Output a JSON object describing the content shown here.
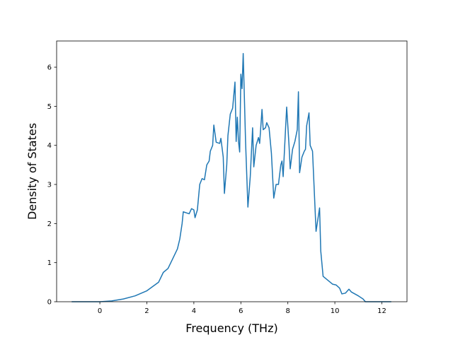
{
  "chart_data": {
    "type": "line",
    "x_label": "Frequency (THz)",
    "y_label": "Density of States",
    "xlim": [
      -1.84,
      13.07
    ],
    "ylim": [
      0,
      6.67
    ],
    "xticks": [
      0,
      2,
      4,
      6,
      8,
      10,
      12
    ],
    "yticks": [
      0,
      1,
      2,
      3,
      4,
      5,
      6
    ],
    "series": [
      {
        "color": "#1f77b4",
        "x": [
          -1.2,
          -0.6,
          0,
          0.5,
          1,
          1.5,
          2,
          2.5,
          2.7,
          2.9,
          3.1,
          3.3,
          3.4,
          3.5,
          3.55,
          3.7,
          3.8,
          3.9,
          4.0,
          4.05,
          4.15,
          4.25,
          4.35,
          4.45,
          4.55,
          4.65,
          4.7,
          4.8,
          4.85,
          4.95,
          5.1,
          5.15,
          5.25,
          5.3,
          5.4,
          5.45,
          5.55,
          5.65,
          5.75,
          5.8,
          5.85,
          5.9,
          5.95,
          6.0,
          6.05,
          6.1,
          6.2,
          6.3,
          6.4,
          6.5,
          6.55,
          6.65,
          6.75,
          6.8,
          6.9,
          6.95,
          7.05,
          7.1,
          7.2,
          7.3,
          7.4,
          7.5,
          7.6,
          7.7,
          7.75,
          7.8,
          7.9,
          7.95,
          8.05,
          8.1,
          8.2,
          8.3,
          8.4,
          8.45,
          8.5,
          8.6,
          8.7,
          8.75,
          8.8,
          8.9,
          8.95,
          9.05,
          9.2,
          9.35,
          9.4,
          9.5,
          9.7,
          9.9,
          10.05,
          10.2,
          10.3,
          10.45,
          10.6,
          10.7,
          11.0,
          11.2,
          11.3,
          12.4
        ],
        "values": [
          0,
          0,
          0,
          0.02,
          0.07,
          0.15,
          0.28,
          0.5,
          0.75,
          0.85,
          1.1,
          1.35,
          1.6,
          2.0,
          2.3,
          2.27,
          2.25,
          2.38,
          2.35,
          2.15,
          2.35,
          3.0,
          3.15,
          3.12,
          3.5,
          3.6,
          3.85,
          4.0,
          4.52,
          4.08,
          4.05,
          4.18,
          3.7,
          2.77,
          3.5,
          4.25,
          4.8,
          4.95,
          5.62,
          4.1,
          4.72,
          4.1,
          3.83,
          5.82,
          5.45,
          6.35,
          4.1,
          2.42,
          3.2,
          4.45,
          3.45,
          4.0,
          4.2,
          4.05,
          4.92,
          4.4,
          4.45,
          4.58,
          4.45,
          3.8,
          2.65,
          3.0,
          3.0,
          3.5,
          3.6,
          3.2,
          4.4,
          4.98,
          4.0,
          3.4,
          3.9,
          4.1,
          4.4,
          5.37,
          3.3,
          3.7,
          3.85,
          3.9,
          4.5,
          4.83,
          4.0,
          3.85,
          1.8,
          2.4,
          1.3,
          0.65,
          0.55,
          0.45,
          0.43,
          0.35,
          0.2,
          0.22,
          0.32,
          0.25,
          0.15,
          0.07,
          0,
          0
        ]
      }
    ]
  }
}
